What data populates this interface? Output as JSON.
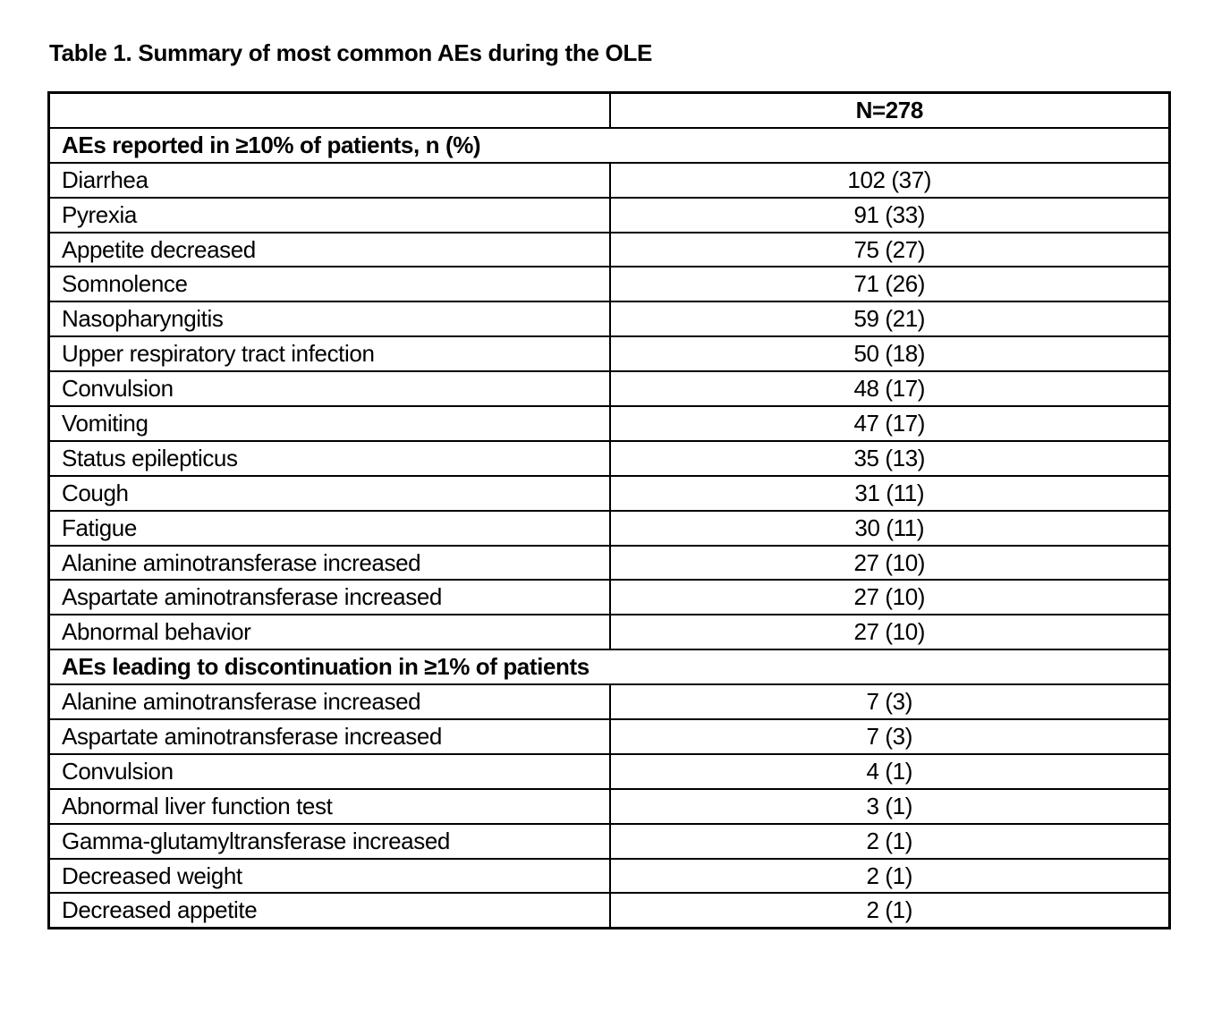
{
  "title": "Table 1. Summary of most common AEs during the OLE",
  "table": {
    "column_header": "N=278",
    "sections": [
      {
        "header": "AEs reported in ≥10% of patients, n (%)",
        "rows": [
          {
            "label": "Diarrhea",
            "value": "102 (37)"
          },
          {
            "label": "Pyrexia",
            "value": "91 (33)"
          },
          {
            "label": "Appetite decreased",
            "value": "75 (27)"
          },
          {
            "label": "Somnolence",
            "value": "71 (26)"
          },
          {
            "label": "Nasopharyngitis",
            "value": "59 (21)"
          },
          {
            "label": "Upper respiratory tract infection",
            "value": "50 (18)"
          },
          {
            "label": "Convulsion",
            "value": "48 (17)"
          },
          {
            "label": "Vomiting",
            "value": "47 (17)"
          },
          {
            "label": "Status epilepticus",
            "value": "35 (13)"
          },
          {
            "label": "Cough",
            "value": "31 (11)"
          },
          {
            "label": "Fatigue",
            "value": "30 (11)"
          },
          {
            "label": "Alanine aminotransferase increased",
            "value": "27 (10)"
          },
          {
            "label": "Aspartate aminotransferase increased",
            "value": "27 (10)"
          },
          {
            "label": "Abnormal behavior",
            "value": "27 (10)"
          }
        ]
      },
      {
        "header": "AEs leading to discontinuation in ≥1% of patients",
        "rows": [
          {
            "label": "Alanine aminotransferase increased",
            "value": "7 (3)"
          },
          {
            "label": "Aspartate aminotransferase increased",
            "value": "7 (3)"
          },
          {
            "label": "Convulsion",
            "value": "4 (1)"
          },
          {
            "label": "Abnormal liver function test",
            "value": "3 (1)"
          },
          {
            "label": "Gamma-glutamyltransferase increased",
            "value": "2 (1)"
          },
          {
            "label": "Decreased weight",
            "value": "2 (1)"
          },
          {
            "label": "Decreased appetite",
            "value": "2 (1)"
          }
        ]
      }
    ]
  },
  "colors": {
    "border": "#000000",
    "background": "#ffffff",
    "text": "#000000"
  }
}
